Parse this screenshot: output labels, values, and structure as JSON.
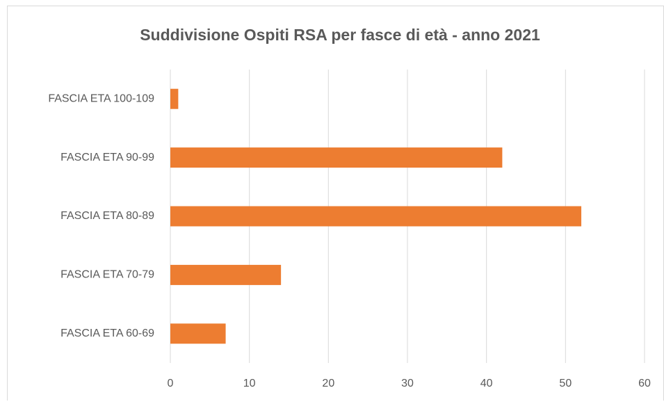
{
  "chart_data": {
    "type": "bar",
    "title": "Suddivisione Ospiti RSA per fasce di età - anno 2021",
    "categories": [
      "FASCIA ETA 100-109",
      "FASCIA ETA 90-99",
      "FASCIA ETA 80-89",
      "FASCIA ETA 70-79",
      "FASCIA ETA 60-69"
    ],
    "values": [
      1,
      42,
      52,
      14,
      7
    ],
    "color": "#ed7d31",
    "xlim": [
      0,
      60
    ],
    "xticks": [
      0,
      10,
      20,
      30,
      40,
      50,
      60
    ],
    "grid": true
  }
}
